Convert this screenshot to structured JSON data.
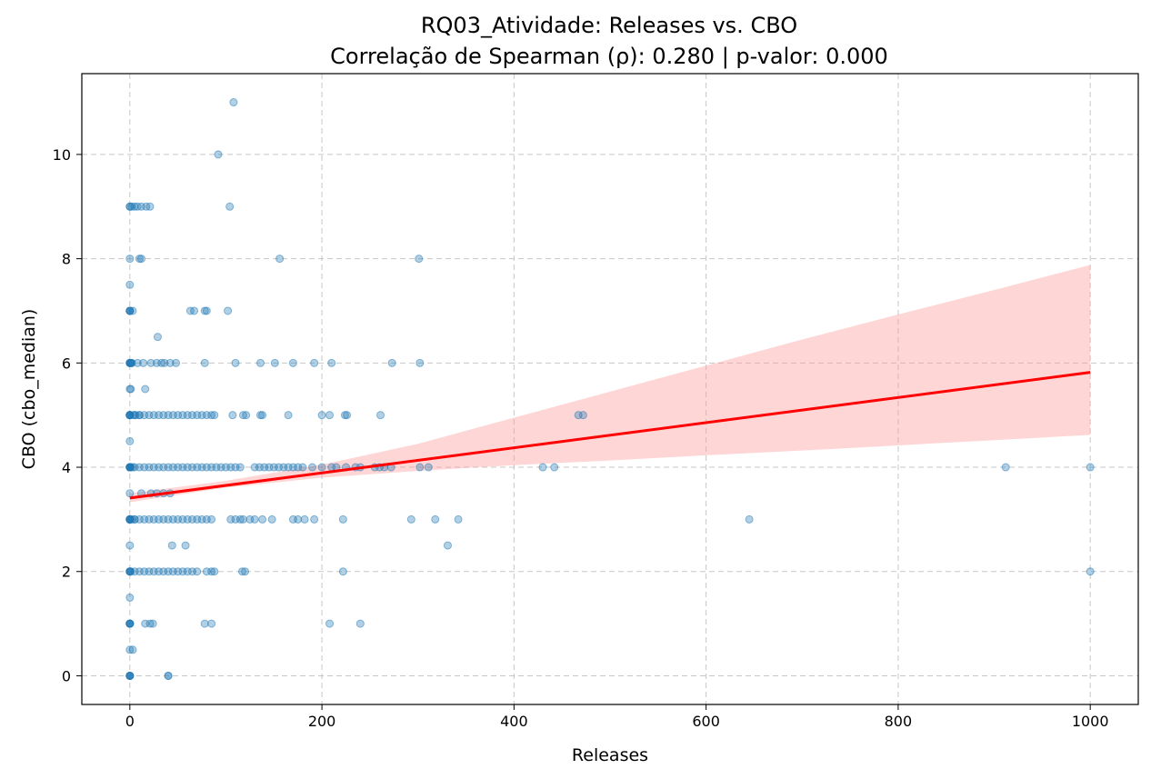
{
  "chart_data": {
    "type": "scatter",
    "title_line1": "RQ03_Atividade: Releases vs. CBO",
    "title_line2": "Correlação de Spearman (ρ): 0.280 | p-valor: 0.000",
    "xlabel": "Releases",
    "ylabel": "CBO (cbo_median)",
    "xlim": [
      -50,
      1050
    ],
    "ylim": [
      -0.55,
      11.55
    ],
    "xticks": [
      0,
      200,
      400,
      600,
      800,
      1000
    ],
    "yticks": [
      0,
      2,
      4,
      6,
      8,
      10
    ],
    "grid": true,
    "colors": {
      "points": "#1f77b4",
      "fit_line": "#ff0000",
      "confidence_band": "#ff9999"
    },
    "regression": {
      "x": [
        0,
        1000
      ],
      "y": [
        3.41,
        5.82
      ],
      "ci_lower": [
        3.33,
        4.62
      ],
      "ci_upper": [
        3.5,
        7.88
      ],
      "ci_x": [
        0,
        100,
        200,
        300,
        400,
        500,
        600,
        700,
        800,
        900,
        1000
      ],
      "ci_lower_values": [
        3.33,
        3.61,
        3.8,
        3.93,
        4.04,
        4.13,
        4.23,
        4.32,
        4.42,
        4.52,
        4.62
      ],
      "ci_upper_values": [
        3.5,
        3.74,
        4.05,
        4.45,
        4.95,
        5.45,
        5.95,
        6.45,
        6.93,
        7.4,
        7.88
      ]
    },
    "series": [
      {
        "x": [
          0,
          2,
          5,
          0,
          0,
          0,
          3,
          0,
          0,
          1,
          2,
          0,
          4,
          0,
          6,
          10,
          0,
          3,
          0,
          1,
          0,
          5,
          0,
          2,
          0,
          1,
          0,
          0,
          0,
          0,
          0,
          0,
          0,
          0,
          0,
          0,
          0,
          0,
          0,
          0,
          0,
          0,
          0,
          0,
          0,
          0,
          0,
          0,
          0,
          0,
          0,
          0,
          0,
          0,
          0,
          0,
          0,
          0,
          0,
          40,
          108,
          92,
          0,
          8,
          12,
          17,
          21,
          104,
          156,
          301,
          10,
          12,
          0,
          0,
          29,
          63,
          67,
          78,
          80,
          102,
          2,
          8,
          14,
          22,
          28,
          33,
          36,
          42,
          48,
          78,
          110,
          136,
          151,
          170,
          192,
          210,
          273,
          302,
          1,
          16,
          0,
          5,
          10,
          15,
          20,
          25,
          30,
          35,
          40,
          45,
          50,
          55,
          60,
          65,
          70,
          75,
          80,
          85,
          88,
          107,
          118,
          121,
          136,
          138,
          165,
          200,
          208,
          224,
          226,
          261,
          467,
          472,
          5,
          10,
          15,
          20,
          25,
          30,
          35,
          40,
          45,
          50,
          55,
          60,
          65,
          70,
          75,
          80,
          85,
          90,
          95,
          100,
          105,
          110,
          115,
          130,
          135,
          140,
          145,
          150,
          155,
          160,
          165,
          170,
          175,
          180,
          190,
          200,
          210,
          215,
          225,
          235,
          240,
          255,
          260,
          265,
          272,
          302,
          311,
          430,
          442,
          912,
          1000,
          5,
          10,
          15,
          20,
          25,
          30,
          35,
          40,
          45,
          50,
          55,
          60,
          65,
          70,
          75,
          80,
          85,
          105,
          110,
          115,
          118,
          125,
          130,
          138,
          148,
          170,
          175,
          182,
          192,
          222,
          293,
          318,
          342,
          645,
          12,
          22,
          28,
          35,
          42,
          44,
          58,
          331,
          5,
          10,
          15,
          20,
          25,
          30,
          35,
          40,
          45,
          50,
          55,
          60,
          65,
          70,
          80,
          85,
          88,
          117,
          120,
          222,
          1000,
          16,
          21,
          24,
          78,
          85,
          208,
          240,
          3,
          40
        ],
        "y": [
          9,
          9,
          9,
          8,
          7.5,
          7,
          7,
          6,
          6,
          6,
          6,
          5.5,
          5,
          5,
          5,
          5,
          4.5,
          4,
          4,
          4,
          3.5,
          3,
          3,
          3,
          2.5,
          2,
          2,
          1.5,
          1,
          1,
          1,
          0.5,
          0,
          0,
          0,
          0,
          1,
          2,
          3,
          4,
          5,
          6,
          7,
          2,
          3,
          4,
          5,
          6,
          1,
          0,
          3,
          4,
          5,
          2,
          3,
          4,
          5,
          3,
          4,
          0,
          11,
          10,
          9,
          9,
          9,
          9,
          9,
          9,
          8,
          8,
          8,
          8,
          7,
          7,
          6.5,
          7,
          7,
          7,
          7,
          7,
          6,
          6,
          6,
          6,
          6,
          6,
          6,
          6,
          6,
          6,
          6,
          6,
          6,
          6,
          6,
          6,
          6,
          6,
          5.5,
          5.5,
          5,
          5,
          5,
          5,
          5,
          5,
          5,
          5,
          5,
          5,
          5,
          5,
          5,
          5,
          5,
          5,
          5,
          5,
          5,
          5,
          5,
          5,
          5,
          5,
          5,
          5,
          5,
          5,
          5,
          5,
          5,
          5,
          4,
          4,
          4,
          4,
          4,
          4,
          4,
          4,
          4,
          4,
          4,
          4,
          4,
          4,
          4,
          4,
          4,
          4,
          4,
          4,
          4,
          4,
          4,
          4,
          4,
          4,
          4,
          4,
          4,
          4,
          4,
          4,
          4,
          4,
          4,
          4,
          4,
          4,
          4,
          4,
          4,
          4,
          4,
          4,
          4,
          4,
          4,
          4,
          4,
          4,
          4,
          3,
          3,
          3,
          3,
          3,
          3,
          3,
          3,
          3,
          3,
          3,
          3,
          3,
          3,
          3,
          3,
          3,
          3,
          3,
          3,
          3,
          3,
          3,
          3,
          3,
          3,
          3,
          3,
          3,
          3,
          3,
          3,
          3,
          3,
          3.5,
          3.5,
          3.5,
          3.5,
          3.5,
          2.5,
          2.5,
          2.5,
          2,
          2,
          2,
          2,
          2,
          2,
          2,
          2,
          2,
          2,
          2,
          2,
          2,
          2,
          2,
          2,
          2,
          2,
          2,
          2,
          2,
          1,
          1,
          1,
          1,
          1,
          1,
          1,
          0.5,
          0
        ]
      }
    ]
  }
}
